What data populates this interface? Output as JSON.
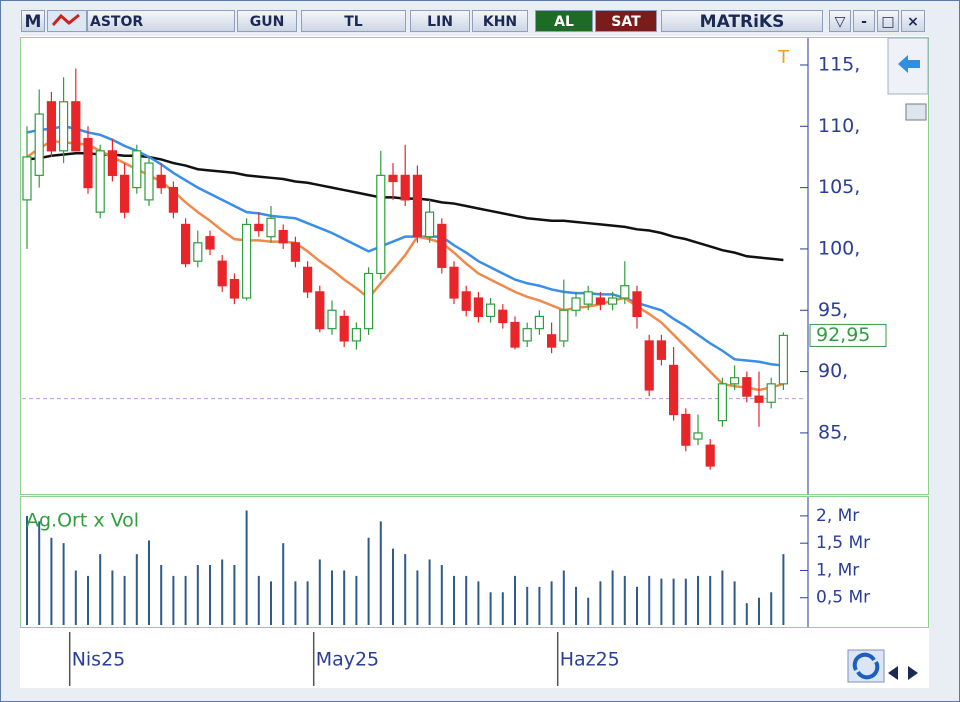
{
  "toolbar": {
    "logo": "M",
    "symbol": "ASTOR",
    "buttons": [
      "GUN",
      "TL",
      "LIN",
      "KHN"
    ],
    "buy": "AL",
    "sell": "SAT",
    "brand": "MATRiKS"
  },
  "chart_data": {
    "type": "candlestick",
    "categories": [
      null,
      null,
      null,
      null,
      "Nis25",
      null,
      null,
      null,
      null,
      null,
      null,
      null,
      null,
      null,
      null,
      null,
      null,
      null,
      null,
      null,
      null,
      null,
      null,
      null,
      "May25",
      null,
      null,
      null,
      null,
      null,
      null,
      null,
      null,
      null,
      null,
      null,
      null,
      null,
      null,
      null,
      null,
      null,
      null,
      null,
      "Haz25",
      null,
      null,
      null,
      null,
      null,
      null,
      null,
      null,
      null,
      null,
      null,
      null,
      null,
      null,
      null,
      null,
      null,
      null
    ],
    "open": [
      104,
      106,
      112,
      108,
      112,
      109,
      103,
      108,
      106,
      105,
      104,
      106,
      105,
      102,
      99,
      101,
      99,
      97.5,
      96,
      102,
      101,
      101.5,
      100.5,
      98.5,
      96.5,
      93.5,
      94.5,
      92.5,
      93.5,
      98,
      106,
      106,
      106,
      101,
      102,
      98.5,
      96.5,
      96,
      94.5,
      95,
      94,
      92.5,
      93.5,
      93,
      92.5,
      95,
      95.5,
      96,
      95.5,
      96,
      96.5,
      92.5,
      92.5,
      90.5,
      86.5,
      84.5,
      84,
      86,
      89,
      89.5,
      88,
      87.5,
      89
    ],
    "high": [
      110,
      113,
      112.8,
      114,
      114.7,
      110,
      108.5,
      109,
      107,
      108.5,
      107.5,
      107,
      105.5,
      102.5,
      101.5,
      101.5,
      99.5,
      98,
      102.5,
      103,
      103.5,
      102,
      101,
      99,
      97,
      95.8,
      95,
      94,
      98.5,
      108,
      107,
      108.5,
      106.8,
      104,
      102.5,
      99,
      97,
      96.5,
      96,
      95.5,
      94.5,
      94,
      95,
      94,
      97.5,
      96.5,
      97,
      96.5,
      96.5,
      99,
      97,
      93,
      93,
      92,
      87,
      86.5,
      84.5,
      89.5,
      90.5,
      90,
      90,
      89.5,
      93.2
    ],
    "low": [
      100,
      105,
      107.5,
      107,
      108,
      104.5,
      102.5,
      105.5,
      102.5,
      104.5,
      103.5,
      104.5,
      102.5,
      98.5,
      98.5,
      99.5,
      96.5,
      95.5,
      95.8,
      101,
      100.5,
      100,
      98.5,
      96,
      93.2,
      93,
      92,
      91.8,
      93,
      97.5,
      104,
      103.5,
      100.5,
      100.5,
      98,
      95.5,
      94.5,
      94,
      94,
      93.5,
      91.8,
      92,
      93,
      91.5,
      92,
      94.5,
      95,
      95,
      95,
      95.5,
      93.5,
      88,
      90.5,
      86,
      83.5,
      84,
      82,
      85.5,
      88.5,
      87.5,
      85.5,
      87,
      88.5
    ],
    "close": [
      107.5,
      111,
      108,
      112,
      108,
      105,
      108,
      106,
      103,
      108,
      107,
      105,
      103,
      98.8,
      100.5,
      100,
      97,
      96,
      102,
      101.5,
      102.5,
      100.5,
      99,
      96.5,
      93.5,
      95,
      92.5,
      93.5,
      98,
      106,
      105.5,
      104,
      101,
      103,
      98.5,
      96,
      95,
      94.5,
      95.5,
      94,
      92,
      93.5,
      94.5,
      92,
      95,
      96,
      96.5,
      95.5,
      96,
      97,
      94.5,
      88.5,
      91,
      86.5,
      84,
      85,
      82.3,
      89,
      89.5,
      88,
      87.5,
      89,
      92.95
    ],
    "up_color": "#2e9e3e",
    "down_color": "#e8262a",
    "last_label": "92,95",
    "reference_value": 87.8,
    "marker": "T",
    "series": [
      {
        "color": "#111111",
        "values": [
          107.3,
          107.4,
          107.6,
          107.7,
          107.8,
          107.8,
          107.7,
          107.7,
          107.6,
          107.6,
          107.5,
          107.3,
          107,
          106.8,
          106.5,
          106.4,
          106.3,
          106.2,
          106,
          105.9,
          105.8,
          105.7,
          105.5,
          105.4,
          105.2,
          105,
          104.8,
          104.6,
          104.4,
          104.2,
          104.2,
          104.1,
          104.1,
          104,
          103.8,
          103.7,
          103.5,
          103.3,
          103.1,
          102.9,
          102.7,
          102.5,
          102.4,
          102.3,
          102.3,
          102.2,
          102.1,
          102,
          101.9,
          101.8,
          101.6,
          101.5,
          101.3,
          101,
          100.8,
          100.5,
          100.2,
          99.9,
          99.7,
          99.4,
          99.3,
          99.2,
          99.1
        ]
      },
      {
        "color": "#3a8ee6",
        "values": [
          109.5,
          109.7,
          109.8,
          110,
          109.8,
          109.5,
          109.3,
          108.9,
          108.4,
          108,
          107.5,
          106.9,
          106.2,
          105.6,
          105,
          104.5,
          104,
          103.5,
          103,
          102.9,
          102.7,
          102.6,
          102.5,
          102.1,
          101.7,
          101.3,
          100.8,
          100.3,
          99.8,
          100.2,
          100.6,
          101,
          101,
          101,
          101,
          100.3,
          99.7,
          99,
          98.5,
          98,
          97.5,
          97.2,
          97,
          96.7,
          96.5,
          96.4,
          96.4,
          96.3,
          96.3,
          96,
          95.6,
          95.3,
          95,
          94.3,
          93.7,
          93,
          92.3,
          91.7,
          91,
          90.9,
          90.8,
          90.6,
          90.5
        ]
      },
      {
        "color": "#f08a4b",
        "values": [
          107.5,
          108.2,
          108.8,
          108.7,
          108.6,
          108.5,
          108,
          107.5,
          107,
          106.5,
          106,
          105.5,
          104.7,
          103.8,
          103,
          102.3,
          101.5,
          100.8,
          100.7,
          100.7,
          100.6,
          100.6,
          100.5,
          99.8,
          99,
          98.3,
          97.5,
          96.8,
          96,
          97.2,
          98.3,
          99.5,
          101,
          100.8,
          100.5,
          99.7,
          98.8,
          98,
          97.5,
          97,
          96.5,
          96.1,
          95.8,
          95.4,
          95,
          95.2,
          95.3,
          95.5,
          95.8,
          96,
          95.3,
          94.7,
          94,
          93,
          92,
          91,
          90,
          89,
          88.8,
          88.7,
          88.5,
          88.7,
          89
        ]
      }
    ],
    "ylim": [
      80.1,
      117.2
    ],
    "yticks": [
      {
        "value": 85,
        "label": "85,"
      },
      {
        "value": 90,
        "label": "90,"
      },
      {
        "value": 95,
        "label": "95,"
      },
      {
        "value": 100,
        "label": "100,"
      },
      {
        "value": 105,
        "label": "105,"
      },
      {
        "value": 110,
        "label": "110,"
      },
      {
        "value": 115,
        "label": "115,"
      }
    ],
    "volume": {
      "label": "Ag.Ort x Vol",
      "color": "#2f5a8a",
      "values": [
        2.0,
        1.9,
        1.6,
        1.5,
        1.0,
        0.9,
        1.3,
        1.0,
        0.9,
        1.3,
        1.55,
        1.1,
        0.9,
        0.9,
        1.1,
        1.1,
        1.2,
        1.1,
        2.1,
        0.9,
        0.8,
        1.5,
        0.8,
        0.8,
        1.2,
        1.0,
        1.0,
        0.9,
        1.6,
        1.9,
        1.4,
        1.3,
        1.0,
        1.2,
        1.1,
        0.9,
        0.9,
        0.8,
        0.6,
        0.6,
        0.9,
        0.7,
        0.7,
        0.8,
        1.0,
        0.7,
        0.5,
        0.8,
        1.0,
        0.9,
        0.7,
        0.9,
        0.85,
        0.85,
        0.85,
        0.9,
        0.9,
        1.0,
        0.8,
        0.4,
        0.5,
        0.6,
        1.3
      ],
      "ylim": [
        0,
        2.2
      ],
      "yticks": [
        {
          "value": 0.5,
          "label": "0,5 Mr"
        },
        {
          "value": 1,
          "label": "1, Mr"
        },
        {
          "value": 1.5,
          "label": "1,5 Mr"
        },
        {
          "value": 2,
          "label": "2, Mr"
        }
      ]
    }
  }
}
